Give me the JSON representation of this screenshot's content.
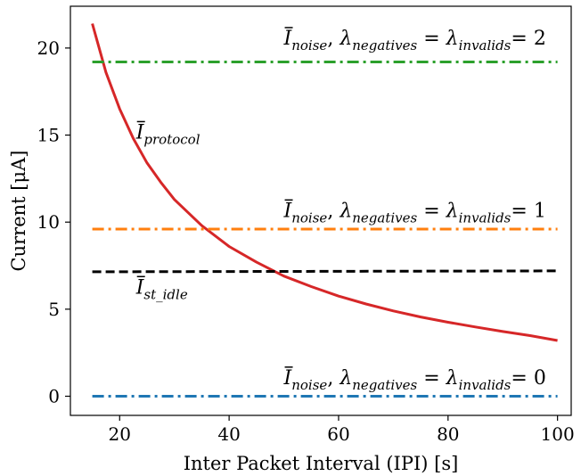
{
  "chart_data": {
    "type": "line",
    "xlabel": "Inter Packet Interval (IPI) [s]",
    "ylabel": "Current [μA]",
    "xlim": [
      11,
      102.5
    ],
    "ylim": [
      -1.1,
      22.4
    ],
    "x_ticks": [
      20,
      40,
      60,
      80,
      100
    ],
    "y_ticks": [
      0,
      5,
      10,
      15,
      20
    ],
    "x_tick_labels": [
      "20",
      "40",
      "60",
      "80",
      "100"
    ],
    "y_tick_labels": [
      "0",
      "5",
      "10",
      "15",
      "20"
    ],
    "grid": false,
    "legend": "none",
    "series": [
      {
        "color": "#d62728",
        "linestyle": "solid",
        "x": [
          15,
          17.5,
          20,
          22.5,
          25,
          27.5,
          30,
          35,
          40,
          45,
          50,
          55,
          60,
          65,
          70,
          75,
          80,
          85,
          90,
          95,
          100
        ],
        "y": [
          21.4,
          18.6,
          16.5,
          14.8,
          13.4,
          12.3,
          11.3,
          9.8,
          8.6,
          7.7,
          6.9,
          6.3,
          5.75,
          5.3,
          4.9,
          4.55,
          4.25,
          3.98,
          3.72,
          3.48,
          3.2
        ]
      },
      {
        "color": "#2ca02c",
        "linestyle": "dashdot",
        "x": [
          15,
          100
        ],
        "y": [
          19.2,
          19.2
        ]
      },
      {
        "color": "#ff7f0e",
        "linestyle": "dashdot",
        "x": [
          15,
          100
        ],
        "y": [
          9.6,
          9.6
        ]
      },
      {
        "color": "#000000",
        "linestyle": "dashed",
        "x": [
          15,
          100
        ],
        "y": [
          7.15,
          7.2
        ]
      },
      {
        "color": "#1f77b4",
        "linestyle": "dashdot",
        "x": [
          15,
          100
        ],
        "y": [
          0,
          0
        ]
      }
    ],
    "annotations": {
      "protocol": {
        "base": "I",
        "sub": "protocol",
        "x": 23,
        "y": 14.8
      },
      "st_idle": {
        "base": "I",
        "sub": "st_idle",
        "x": 23,
        "y": 5.9
      },
      "noise2": {
        "base": "I",
        "sub1": "noise",
        "sep": ", ",
        "lambda1": "λ",
        "sub2": "negatives",
        "eq": " = ",
        "lambda2": "λ",
        "sub3": "invalids",
        "value": "= 2",
        "x": 50,
        "y": 20.2
      },
      "noise1": {
        "base": "I",
        "sub1": "noise",
        "sep": ", ",
        "lambda1": "λ",
        "sub2": "negatives",
        "eq": " = ",
        "lambda2": "λ",
        "sub3": "invalids",
        "value": "= 1",
        "x": 50,
        "y": 10.3
      },
      "noise0": {
        "base": "I",
        "sub1": "noise",
        "sep": ", ",
        "lambda1": "λ",
        "sub2": "negatives",
        "eq": " = ",
        "lambda2": "λ",
        "sub3": "invalids",
        "value": "= 0",
        "x": 50,
        "y": 0.7
      }
    }
  }
}
